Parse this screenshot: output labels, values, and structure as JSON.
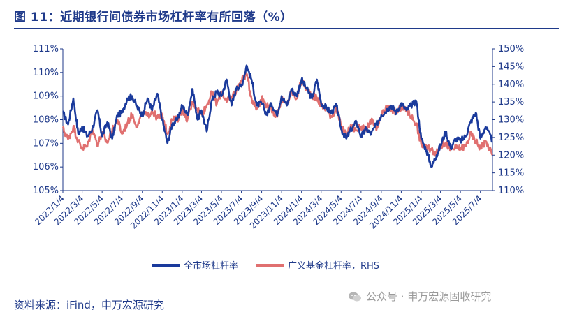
{
  "page": {
    "title": "图 11：近期银行间债券市场杠杆率有所回落（%）",
    "source": "资料来源：iFind，申万宏源研究",
    "watermark": "公众号 · 申万宏源固收研究",
    "colors": {
      "brand": "#1f3a8a",
      "series_market": "#1a3a9c",
      "series_fund": "#e07070"
    }
  },
  "chart_data": {
    "type": "line",
    "x_tick_labels": [
      "2022/1/4",
      "2022/3/4",
      "2022/5/4",
      "2022/7/4",
      "2022/9/4",
      "2022/11/4",
      "2023/1/4",
      "2023/3/4",
      "2023/5/4",
      "2023/7/4",
      "2023/9/4",
      "2023/11/4",
      "2024/1/4",
      "2024/3/4",
      "2024/5/4",
      "2024/7/4",
      "2024/9/4",
      "2024/11/4",
      "2025/1/4",
      "2025/3/4",
      "2025/5/4",
      "2025/7/4"
    ],
    "x_range": [
      "2022/1/4",
      "2025/8/10"
    ],
    "y_left": {
      "ticks": [
        "105%",
        "106%",
        "107%",
        "108%",
        "109%",
        "110%",
        "111%"
      ],
      "range": [
        105,
        111
      ]
    },
    "y_right": {
      "ticks": [
        "110%",
        "115%",
        "120%",
        "125%",
        "130%",
        "135%",
        "140%",
        "145%",
        "150%"
      ],
      "range": [
        110,
        150
      ]
    },
    "grid": false,
    "legend_placement": "bottom",
    "series": [
      {
        "name": "全市场杠杆率",
        "axis": "left",
        "color": "#1a3a9c",
        "points": [
          [
            "2022/1/4",
            108.3
          ],
          [
            "2022/1/20",
            107.8
          ],
          [
            "2022/2/5",
            108.9
          ],
          [
            "2022/2/20",
            107.4
          ],
          [
            "2022/3/4",
            107.7
          ],
          [
            "2022/3/20",
            107.3
          ],
          [
            "2022/4/4",
            107.6
          ],
          [
            "2022/4/20",
            108.4
          ],
          [
            "2022/5/4",
            107.3
          ],
          [
            "2022/5/20",
            107.9
          ],
          [
            "2022/6/4",
            107.2
          ],
          [
            "2022/6/20",
            108.2
          ],
          [
            "2022/7/4",
            108.3
          ],
          [
            "2022/7/20",
            108.9
          ],
          [
            "2022/8/4",
            109.0
          ],
          [
            "2022/8/20",
            108.5
          ],
          [
            "2022/9/4",
            108.2
          ],
          [
            "2022/9/20",
            108.9
          ],
          [
            "2022/10/4",
            108.4
          ],
          [
            "2022/10/20",
            109.1
          ],
          [
            "2022/11/4",
            108.0
          ],
          [
            "2022/11/20",
            107.0
          ],
          [
            "2022/12/4",
            107.8
          ],
          [
            "2022/12/20",
            108.0
          ],
          [
            "2023/1/4",
            108.6
          ],
          [
            "2023/1/20",
            108.2
          ],
          [
            "2023/2/5",
            109.3
          ],
          [
            "2023/2/20",
            108.0
          ],
          [
            "2023/3/4",
            108.4
          ],
          [
            "2023/3/20",
            107.5
          ],
          [
            "2023/4/4",
            108.8
          ],
          [
            "2023/4/20",
            109.2
          ],
          [
            "2023/5/4",
            109.0
          ],
          [
            "2023/5/20",
            109.7
          ],
          [
            "2023/6/4",
            108.6
          ],
          [
            "2023/6/20",
            109.4
          ],
          [
            "2023/7/4",
            109.4
          ],
          [
            "2023/7/20",
            110.3
          ],
          [
            "2023/8/4",
            109.7
          ],
          [
            "2023/8/20",
            108.6
          ],
          [
            "2023/9/4",
            108.7
          ],
          [
            "2023/9/20",
            108.2
          ],
          [
            "2023/10/4",
            108.7
          ],
          [
            "2023/10/20",
            108.2
          ],
          [
            "2023/11/4",
            109.0
          ],
          [
            "2023/11/20",
            108.6
          ],
          [
            "2023/12/4",
            109.3
          ],
          [
            "2023/12/20",
            109.0
          ],
          [
            "2024/1/4",
            109.7
          ],
          [
            "2024/1/20",
            109.3
          ],
          [
            "2024/2/5",
            108.9
          ],
          [
            "2024/2/20",
            109.7
          ],
          [
            "2024/3/4",
            108.7
          ],
          [
            "2024/3/20",
            108.5
          ],
          [
            "2024/4/4",
            108.3
          ],
          [
            "2024/4/20",
            108.6
          ],
          [
            "2024/5/4",
            107.6
          ],
          [
            "2024/5/20",
            107.2
          ],
          [
            "2024/6/4",
            107.6
          ],
          [
            "2024/6/20",
            107.9
          ],
          [
            "2024/7/4",
            107.3
          ],
          [
            "2024/7/20",
            107.6
          ],
          [
            "2024/8/4",
            107.4
          ],
          [
            "2024/8/20",
            107.8
          ],
          [
            "2024/9/4",
            108.2
          ],
          [
            "2024/9/20",
            108.4
          ],
          [
            "2024/10/4",
            108.6
          ],
          [
            "2024/10/20",
            108.3
          ],
          [
            "2024/11/4",
            108.7
          ],
          [
            "2024/11/20",
            108.4
          ],
          [
            "2024/12/4",
            108.6
          ],
          [
            "2024/12/20",
            108.8
          ],
          [
            "2025/1/4",
            107.2
          ],
          [
            "2025/1/20",
            106.7
          ],
          [
            "2025/2/5",
            106.0
          ],
          [
            "2025/2/20",
            106.5
          ],
          [
            "2025/3/4",
            106.9
          ],
          [
            "2025/3/20",
            107.5
          ],
          [
            "2025/4/4",
            106.8
          ],
          [
            "2025/4/20",
            107.2
          ],
          [
            "2025/5/4",
            107.1
          ],
          [
            "2025/5/20",
            107.3
          ],
          [
            "2025/6/4",
            107.9
          ],
          [
            "2025/6/20",
            108.3
          ],
          [
            "2025/7/4",
            107.2
          ],
          [
            "2025/7/20",
            107.7
          ],
          [
            "2025/8/10",
            107.1
          ]
        ]
      },
      {
        "name": "广义基金杠杆率，RHS",
        "axis": "right",
        "color": "#e07070",
        "points": [
          [
            "2022/1/4",
            127.5
          ],
          [
            "2022/1/20",
            124.5
          ],
          [
            "2022/2/5",
            128.0
          ],
          [
            "2022/2/20",
            124.0
          ],
          [
            "2022/3/4",
            122.0
          ],
          [
            "2022/3/20",
            122.5
          ],
          [
            "2022/4/4",
            127.5
          ],
          [
            "2022/4/20",
            123.0
          ],
          [
            "2022/5/4",
            126.0
          ],
          [
            "2022/5/20",
            123.5
          ],
          [
            "2022/6/4",
            127.0
          ],
          [
            "2022/6/20",
            130.0
          ],
          [
            "2022/7/4",
            126.0
          ],
          [
            "2022/7/20",
            129.0
          ],
          [
            "2022/8/4",
            131.5
          ],
          [
            "2022/8/20",
            128.0
          ],
          [
            "2022/9/4",
            132.0
          ],
          [
            "2022/9/20",
            131.0
          ],
          [
            "2022/10/4",
            132.5
          ],
          [
            "2022/10/20",
            130.5
          ],
          [
            "2022/11/4",
            131.0
          ],
          [
            "2022/11/20",
            126.0
          ],
          [
            "2022/12/4",
            130.0
          ],
          [
            "2022/12/20",
            130.0
          ],
          [
            "2023/1/4",
            133.0
          ],
          [
            "2023/1/20",
            130.0
          ],
          [
            "2023/2/5",
            135.0
          ],
          [
            "2023/2/20",
            133.0
          ],
          [
            "2023/3/4",
            131.5
          ],
          [
            "2023/3/20",
            134.0
          ],
          [
            "2023/4/4",
            137.5
          ],
          [
            "2023/4/20",
            134.5
          ],
          [
            "2023/5/4",
            138.0
          ],
          [
            "2023/5/20",
            135.0
          ],
          [
            "2023/6/4",
            136.5
          ],
          [
            "2023/6/20",
            138.5
          ],
          [
            "2023/7/4",
            141.0
          ],
          [
            "2023/7/20",
            143.0
          ],
          [
            "2023/8/4",
            136.0
          ],
          [
            "2023/8/20",
            133.0
          ],
          [
            "2023/9/4",
            136.0
          ],
          [
            "2023/9/20",
            134.0
          ],
          [
            "2023/10/4",
            133.0
          ],
          [
            "2023/10/20",
            131.0
          ],
          [
            "2023/11/4",
            136.0
          ],
          [
            "2023/11/20",
            134.0
          ],
          [
            "2023/12/4",
            138.0
          ],
          [
            "2023/12/20",
            136.0
          ],
          [
            "2024/1/4",
            141.0
          ],
          [
            "2024/1/20",
            138.5
          ],
          [
            "2024/2/5",
            137.0
          ],
          [
            "2024/2/20",
            136.0
          ],
          [
            "2024/3/4",
            134.0
          ],
          [
            "2024/3/20",
            133.0
          ],
          [
            "2024/4/4",
            131.0
          ],
          [
            "2024/4/20",
            133.0
          ],
          [
            "2024/5/4",
            128.0
          ],
          [
            "2024/5/20",
            126.0
          ],
          [
            "2024/6/4",
            128.0
          ],
          [
            "2024/6/20",
            127.0
          ],
          [
            "2024/7/4",
            128.0
          ],
          [
            "2024/7/20",
            127.0
          ],
          [
            "2024/8/4",
            130.0
          ],
          [
            "2024/8/20",
            127.0
          ],
          [
            "2024/9/4",
            131.0
          ],
          [
            "2024/9/20",
            133.5
          ],
          [
            "2024/10/4",
            133.0
          ],
          [
            "2024/10/20",
            132.0
          ],
          [
            "2024/11/4",
            133.5
          ],
          [
            "2024/11/20",
            132.5
          ],
          [
            "2024/12/4",
            131.0
          ],
          [
            "2024/12/20",
            129.0
          ],
          [
            "2025/1/4",
            123.0
          ],
          [
            "2025/1/20",
            122.0
          ],
          [
            "2025/2/5",
            121.5
          ],
          [
            "2025/2/20",
            120.5
          ],
          [
            "2025/3/4",
            122.5
          ],
          [
            "2025/3/20",
            123.5
          ],
          [
            "2025/4/4",
            121.5
          ],
          [
            "2025/4/20",
            122.0
          ],
          [
            "2025/5/4",
            122.0
          ],
          [
            "2025/5/20",
            122.5
          ],
          [
            "2025/6/4",
            126.0
          ],
          [
            "2025/6/20",
            124.0
          ],
          [
            "2025/7/4",
            122.0
          ],
          [
            "2025/7/20",
            124.0
          ],
          [
            "2025/8/10",
            120.0
          ]
        ]
      }
    ]
  }
}
